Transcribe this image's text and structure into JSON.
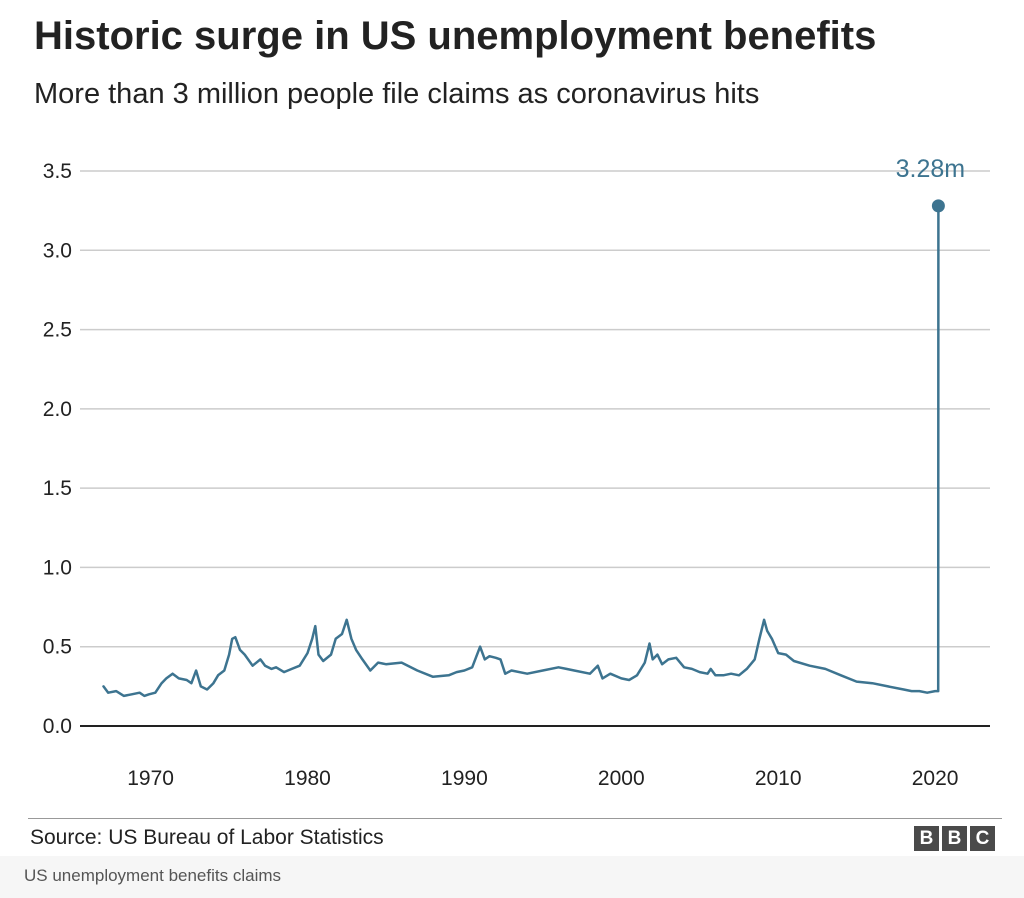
{
  "chart_data": {
    "type": "line",
    "title": "Historic surge in US unemployment benefits",
    "subtitle": "More than 3 million people file claims as coronavirus hits",
    "xlabel": "",
    "ylabel": "",
    "xlim": [
      1965.5,
      2023.5
    ],
    "ylim": [
      0,
      3.5
    ],
    "x_ticks": [
      1970,
      1980,
      1990,
      2000,
      2010,
      2020
    ],
    "x_tick_labels": [
      "1970",
      "1980",
      "1990",
      "2000",
      "2010",
      "2020"
    ],
    "y_ticks": [
      0,
      0.5,
      1,
      1.5,
      2,
      2.5,
      3,
      3.5
    ],
    "y_tick_labels": [
      "0.0",
      "0.5",
      "1.0",
      "1.5",
      "2.0",
      "2.5",
      "3.0",
      "3.5"
    ],
    "grid": true,
    "legend": "none",
    "series": [
      {
        "color": "#3d7490",
        "x": [
          1967.0,
          1967.3,
          1967.8,
          1968.3,
          1968.8,
          1969.3,
          1969.6,
          1969.9,
          1970.3,
          1970.7,
          1971.0,
          1971.4,
          1971.8,
          1972.3,
          1972.6,
          1972.9,
          1973.2,
          1973.6,
          1974.0,
          1974.3,
          1974.7,
          1975.0,
          1975.2,
          1975.4,
          1975.7,
          1976.0,
          1976.5,
          1977.0,
          1977.3,
          1977.7,
          1978.0,
          1978.5,
          1979.0,
          1979.5,
          1980.0,
          1980.3,
          1980.5,
          1980.7,
          1981.0,
          1981.5,
          1981.8,
          1982.2,
          1982.5,
          1982.8,
          1983.1,
          1983.5,
          1984.0,
          1984.5,
          1985.0,
          1986.0,
          1987.0,
          1988.0,
          1989.0,
          1989.5,
          1990.0,
          1990.5,
          1991.0,
          1991.3,
          1991.6,
          1992.0,
          1992.3,
          1992.6,
          1993.0,
          1994.0,
          1995.0,
          1996.0,
          1996.5,
          1997.0,
          1998.0,
          1998.5,
          1998.8,
          1999.3,
          2000.0,
          2000.5,
          2001.0,
          2001.5,
          2001.8,
          2002.0,
          2002.3,
          2002.6,
          2003.0,
          2003.5,
          2004.0,
          2004.5,
          2005.0,
          2005.5,
          2005.7,
          2006.0,
          2006.5,
          2007.0,
          2007.5,
          2008.0,
          2008.5,
          2008.8,
          2009.1,
          2009.3,
          2009.6,
          2010.0,
          2010.5,
          2011.0,
          2012.0,
          2013.0,
          2014.0,
          2015.0,
          2016.0,
          2017.0,
          2018.0,
          2018.5,
          2019.0,
          2019.5,
          2020.0,
          2020.2,
          2020.21
        ],
        "values": [
          0.25,
          0.21,
          0.22,
          0.19,
          0.2,
          0.21,
          0.19,
          0.2,
          0.21,
          0.27,
          0.3,
          0.33,
          0.3,
          0.29,
          0.27,
          0.35,
          0.25,
          0.23,
          0.27,
          0.32,
          0.35,
          0.45,
          0.55,
          0.56,
          0.48,
          0.45,
          0.38,
          0.42,
          0.38,
          0.36,
          0.37,
          0.34,
          0.36,
          0.38,
          0.46,
          0.55,
          0.63,
          0.45,
          0.41,
          0.45,
          0.55,
          0.58,
          0.67,
          0.55,
          0.48,
          0.42,
          0.35,
          0.4,
          0.39,
          0.4,
          0.35,
          0.31,
          0.32,
          0.34,
          0.35,
          0.37,
          0.5,
          0.42,
          0.44,
          0.43,
          0.42,
          0.33,
          0.35,
          0.33,
          0.35,
          0.37,
          0.36,
          0.35,
          0.33,
          0.38,
          0.3,
          0.33,
          0.3,
          0.29,
          0.32,
          0.4,
          0.52,
          0.42,
          0.45,
          0.39,
          0.42,
          0.43,
          0.37,
          0.36,
          0.34,
          0.33,
          0.36,
          0.32,
          0.32,
          0.33,
          0.32,
          0.36,
          0.42,
          0.55,
          0.67,
          0.6,
          0.55,
          0.46,
          0.45,
          0.41,
          0.38,
          0.36,
          0.32,
          0.28,
          0.27,
          0.25,
          0.23,
          0.22,
          0.22,
          0.21,
          0.22,
          0.22,
          3.28
        ]
      }
    ],
    "annotation": {
      "x": 2020.21,
      "y": 3.28,
      "label": "3.28m",
      "color": "#3d7490"
    }
  },
  "footer": {
    "source": "Source: US Bureau of Labor Statistics",
    "logo_letters": [
      "B",
      "B",
      "C"
    ]
  },
  "caption": "US unemployment benefits claims"
}
